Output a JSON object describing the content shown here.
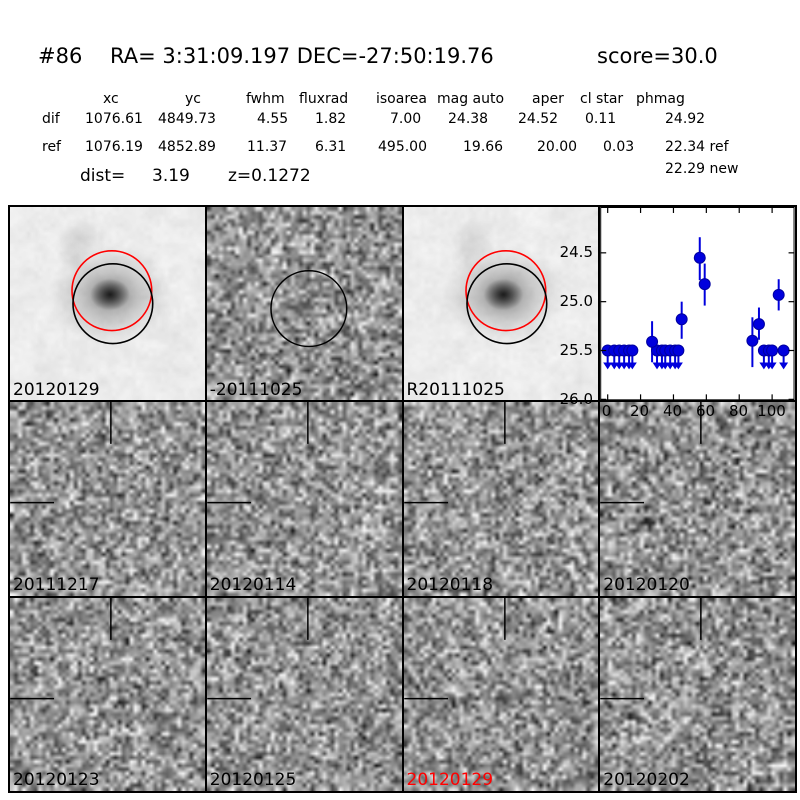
{
  "header": {
    "id": "#86",
    "ra_dec": "RA= 3:31:09.197 DEC=-27:50:19.76",
    "score": "score=30.0"
  },
  "table": {
    "columns": [
      "xc",
      "yc",
      "fwhm",
      "fluxrad",
      "isoarea",
      "mag auto",
      "aper",
      "cl star",
      "phmag"
    ],
    "rows": [
      {
        "label": "dif",
        "values": [
          "1076.61",
          "4849.73",
          "4.55",
          "1.82",
          "7.00",
          "24.38",
          "24.52",
          "0.11",
          "24.92"
        ]
      },
      {
        "label": "ref",
        "values": [
          "1076.19",
          "4852.89",
          "11.37",
          "6.31",
          "495.00",
          "19.66",
          "20.00",
          "0.03",
          "22.34 ref"
        ]
      }
    ],
    "extra_line": "22.29 new",
    "dist_label": "dist=",
    "dist_value": "3.19",
    "redshift": "z=0.1272"
  },
  "panels": [
    {
      "label": "20120129",
      "label_color": "#000000",
      "kind": "galaxy",
      "circles": true
    },
    {
      "label": "-20111025",
      "label_color": "#000000",
      "kind": "diff",
      "circle_black": true,
      "blob": 0.22
    },
    {
      "label": "R20111025",
      "label_color": "#000000",
      "kind": "galaxy",
      "circles": true
    },
    {
      "label": "",
      "kind": "plot"
    },
    {
      "label": "20111217",
      "label_color": "#000000",
      "kind": "diff",
      "crosshair": true
    },
    {
      "label": "20120114",
      "label_color": "#000000",
      "kind": "diff",
      "crosshair": true
    },
    {
      "label": "20120118",
      "label_color": "#000000",
      "kind": "diff",
      "crosshair": true,
      "blob": 0.3
    },
    {
      "label": "20120120",
      "label_color": "#000000",
      "kind": "diff",
      "crosshair": true
    },
    {
      "label": "20120123",
      "label_color": "#000000",
      "kind": "diff",
      "crosshair": true
    },
    {
      "label": "20120125",
      "label_color": "#000000",
      "kind": "diff",
      "crosshair": true
    },
    {
      "label": "20120129",
      "label_color": "#ff0000",
      "kind": "diff",
      "crosshair": true,
      "blob": 0.5
    },
    {
      "label": "20120202",
      "label_color": "#000000",
      "kind": "diff",
      "crosshair": true
    }
  ],
  "chart_data": {
    "type": "scatter",
    "title": "",
    "xlabel": "",
    "ylabel": "",
    "xlim": [
      -4.5,
      113.5
    ],
    "ylim": [
      26.0,
      24.03
    ],
    "xticks": [
      0,
      20,
      40,
      60,
      80,
      100
    ],
    "yticks": [
      24.5,
      25.0,
      25.5,
      26.0
    ],
    "y_axis_inverted": true,
    "grid": false,
    "legend": "none",
    "marker_color": "#0000dd",
    "detections": [
      {
        "x": 27,
        "mag": 25.41,
        "err_up": 0.21,
        "err_down": 0.21
      },
      {
        "x": 45,
        "mag": 25.18,
        "err_up": 0.18,
        "err_down": 0.2
      },
      {
        "x": 56,
        "mag": 24.55,
        "err_up": 0.21,
        "err_down": 0.23
      },
      {
        "x": 59,
        "mag": 24.82,
        "err_up": 0.21,
        "err_down": 0.22
      },
      {
        "x": 88,
        "mag": 25.4,
        "err_up": 0.24,
        "err_down": 0.27
      },
      {
        "x": 92,
        "mag": 25.23,
        "err_up": 0.17,
        "err_down": 0.16
      },
      {
        "x": 104,
        "mag": 24.93,
        "err_up": 0.16,
        "err_down": 0.16
      }
    ],
    "upper_limits": {
      "mag": 25.5,
      "x": [
        0,
        4,
        7,
        10,
        13,
        15,
        30,
        33,
        35,
        38,
        41,
        43,
        95,
        98,
        100,
        107
      ]
    }
  },
  "colors": {
    "circle_new": "#ff0000",
    "circle_ref": "#000000",
    "marker": "#0000dd",
    "highlight_label": "#ff0000"
  }
}
